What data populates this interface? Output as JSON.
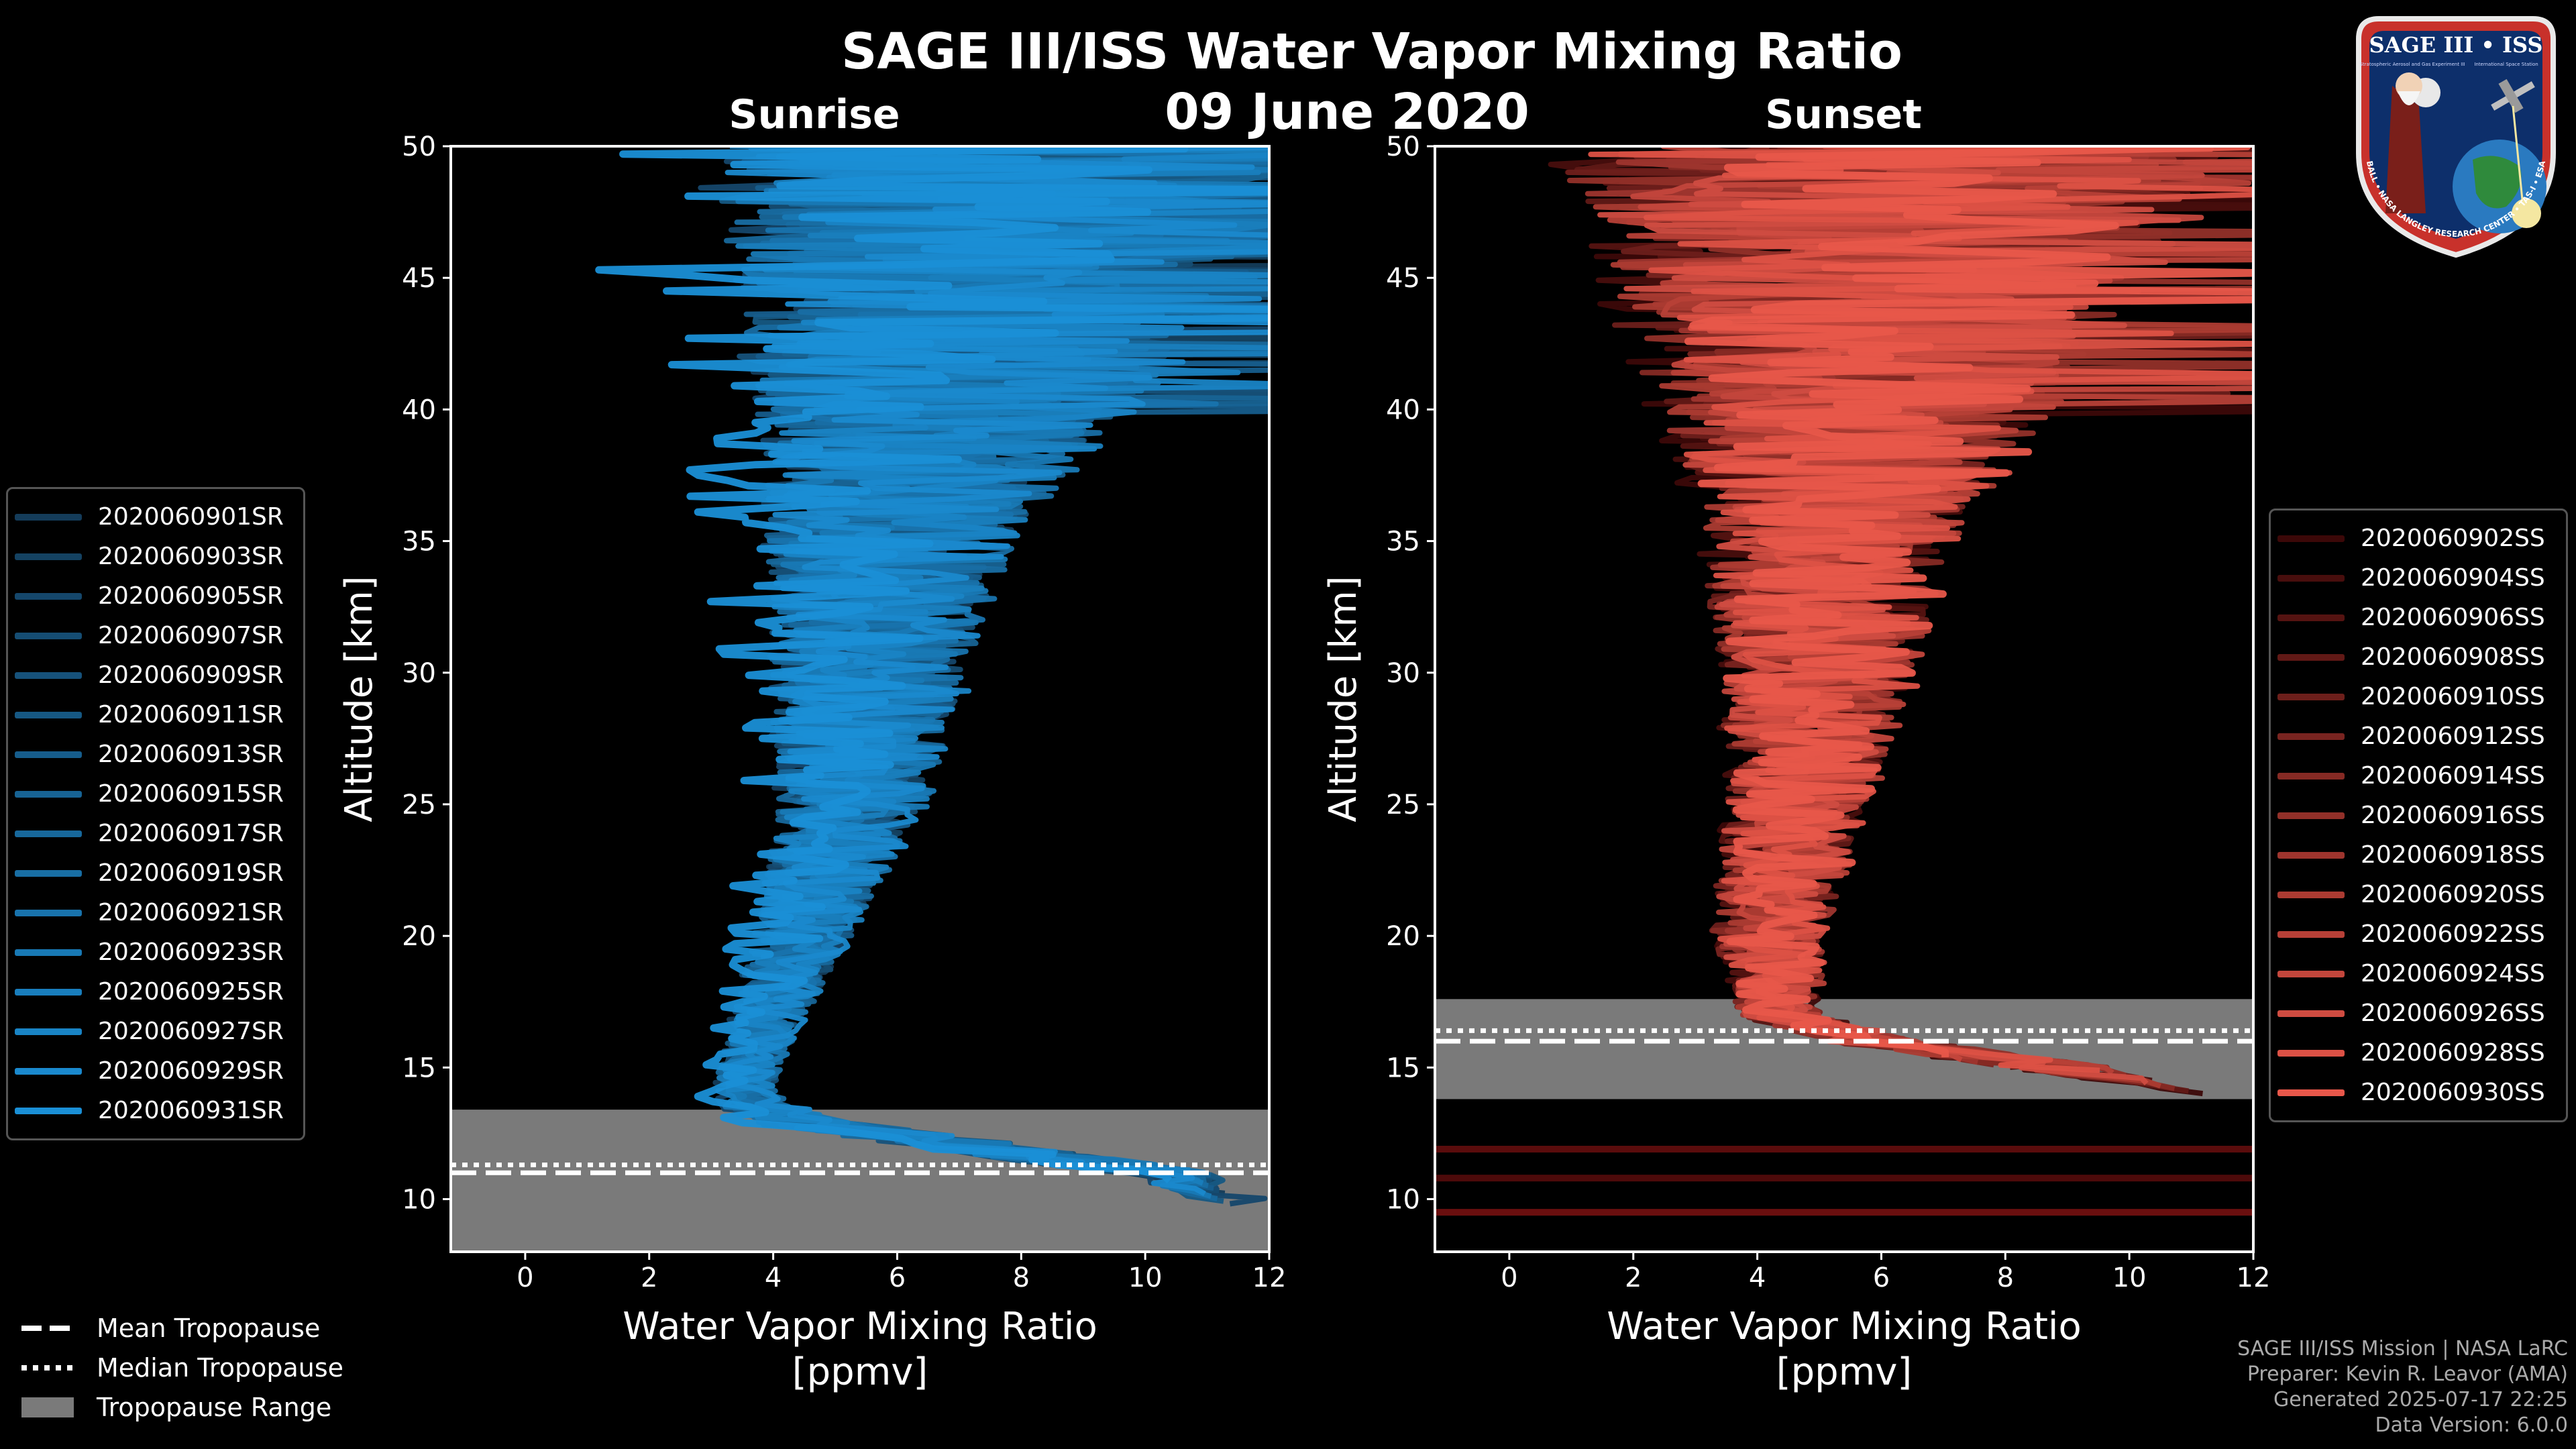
{
  "title": "SAGE III/ISS Water Vapor Mixing Ratio",
  "date": "09 June 2020",
  "panels": {
    "sunrise": {
      "label": "Sunrise"
    },
    "sunset": {
      "label": "Sunset"
    }
  },
  "legend_sr": [
    "2020060901SR",
    "2020060903SR",
    "2020060905SR",
    "2020060907SR",
    "2020060909SR",
    "2020060911SR",
    "2020060913SR",
    "2020060915SR",
    "2020060917SR",
    "2020060919SR",
    "2020060921SR",
    "2020060923SR",
    "2020060925SR",
    "2020060927SR",
    "2020060929SR",
    "2020060931SR"
  ],
  "legend_ss": [
    "2020060902SS",
    "2020060904SS",
    "2020060906SS",
    "2020060908SS",
    "2020060910SS",
    "2020060912SS",
    "2020060914SS",
    "2020060916SS",
    "2020060918SS",
    "2020060920SS",
    "2020060922SS",
    "2020060924SS",
    "2020060926SS",
    "2020060928SS",
    "2020060930SS"
  ],
  "tropopause_legend": {
    "mean": "Mean Tropopause",
    "median": "Median Tropopause",
    "range": "Tropopause Range"
  },
  "footer": {
    "line1": "SAGE III/ISS Mission | NASA LaRC",
    "line2": "Preparer: Kevin R. Leavor (AMA)",
    "line3": "Generated 2025-07-17 22:25",
    "line4": "Data Version: 6.0.0"
  },
  "logo": {
    "title": "SAGE III • ISS",
    "subtitle1": "Stratospheric Aerosol and Gas Experiment III",
    "subtitle2": "International Space Station",
    "ring_text": "BALL • NASA LANGLEY RESEARCH CENTER • TAS-I • ESA"
  },
  "colors": {
    "sunrise": "#1a8fd6",
    "sunset": "#e8574a",
    "tropopause_range": "#7a7a7a"
  },
  "chart_data": [
    {
      "type": "line",
      "panel": "Sunrise",
      "xlabel": "Water Vapor Mixing Ratio\n[ppmv]",
      "ylabel": "Altitude [km]",
      "xlim": [
        -1.2,
        12
      ],
      "ylim": [
        8,
        50
      ],
      "xticks": [
        0,
        2,
        4,
        6,
        8,
        10,
        12
      ],
      "yticks": [
        10,
        15,
        20,
        25,
        30,
        35,
        40,
        45,
        50
      ],
      "tropopause": {
        "mean": 11.0,
        "median": 11.3,
        "range": [
          8.0,
          13.4
        ]
      },
      "series_count": 16,
      "profile_shape": {
        "altitude": [
          9.8,
          11,
          12,
          13,
          14,
          15,
          17,
          20,
          25,
          30,
          35,
          40,
          45,
          50
        ],
        "median_ppmv": [
          11.5,
          10.0,
          7.0,
          4.0,
          3.4,
          3.5,
          3.8,
          4.3,
          5.0,
          5.2,
          5.4,
          6.0,
          6.5,
          7.0
        ],
        "spread_ppmv": [
          0.6,
          0.8,
          1.0,
          0.8,
          0.5,
          0.5,
          0.6,
          0.8,
          1.2,
          1.6,
          2.0,
          3.0,
          4.5,
          5.5
        ]
      }
    },
    {
      "type": "line",
      "panel": "Sunset",
      "xlabel": "Water Vapor Mixing Ratio\n[ppmv]",
      "ylabel": "Altitude [km]",
      "xlim": [
        -1.2,
        12
      ],
      "ylim": [
        8,
        50
      ],
      "xticks": [
        0,
        2,
        4,
        6,
        8,
        10,
        12
      ],
      "yticks": [
        10,
        15,
        20,
        25,
        30,
        35,
        40,
        45,
        50
      ],
      "tropopause": {
        "mean": 16.0,
        "median": 16.4,
        "range": [
          13.8,
          17.6
        ]
      },
      "series_count": 15,
      "profile_shape": {
        "altitude": [
          14,
          15,
          16,
          17,
          20,
          25,
          30,
          35,
          40,
          45,
          50
        ],
        "median_ppmv": [
          11.5,
          9.0,
          6.0,
          4.5,
          4.3,
          4.8,
          5.2,
          5.4,
          6.0,
          6.5,
          7.0
        ],
        "spread_ppmv": [
          0.6,
          0.8,
          0.8,
          0.7,
          0.9,
          1.2,
          1.6,
          2.0,
          3.2,
          4.5,
          5.5
        ]
      }
    }
  ]
}
